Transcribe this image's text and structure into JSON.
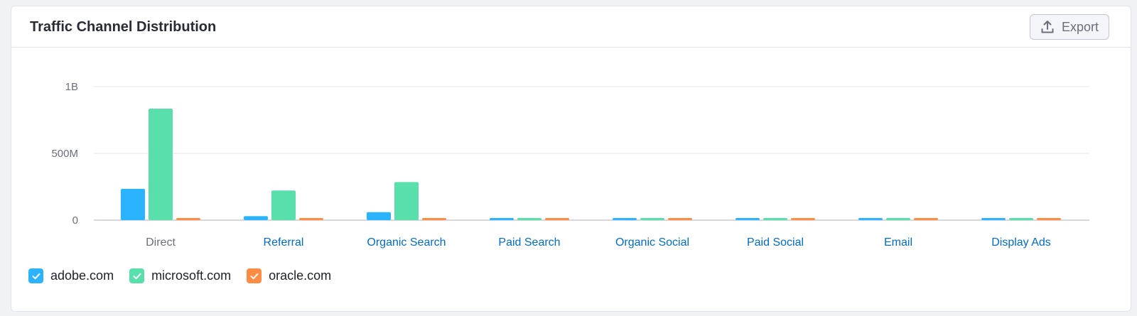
{
  "header": {
    "title": "Traffic Channel Distribution",
    "export_label": "Export",
    "export_icon": "upload-icon"
  },
  "chart_data": {
    "type": "bar",
    "title": "Traffic Channel Distribution",
    "xlabel": "",
    "ylabel": "",
    "ylim": [
      0,
      1000000000
    ],
    "yticks": [
      {
        "value": 0,
        "label": "0"
      },
      {
        "value": 500000000,
        "label": "500M"
      },
      {
        "value": 1000000000,
        "label": "1B"
      }
    ],
    "grid": true,
    "legend_position": "bottom-left",
    "categories": [
      "Direct",
      "Referral",
      "Organic Search",
      "Paid Search",
      "Organic Social",
      "Paid Social",
      "Email",
      "Display Ads"
    ],
    "category_colors": [
      "#6b6f7b",
      "#006dca",
      "#006dca",
      "#006dca",
      "#006dca",
      "#006dca",
      "#006dca",
      "#006dca"
    ],
    "series": [
      {
        "name": "adobe.com",
        "color": "#2bb3ff",
        "values": [
          235000000,
          30000000,
          60000000,
          5000000,
          3000000,
          2000000,
          2000000,
          2000000
        ]
      },
      {
        "name": "microsoft.com",
        "color": "#59dfac",
        "values": [
          835000000,
          222000000,
          285000000,
          5000000,
          8000000,
          4000000,
          2000000,
          3000000
        ]
      },
      {
        "name": "oracle.com",
        "color": "#ff8c43",
        "values": [
          8000000,
          4000000,
          5000000,
          1000000,
          1000000,
          1000000,
          1000000,
          1000000
        ]
      }
    ]
  }
}
